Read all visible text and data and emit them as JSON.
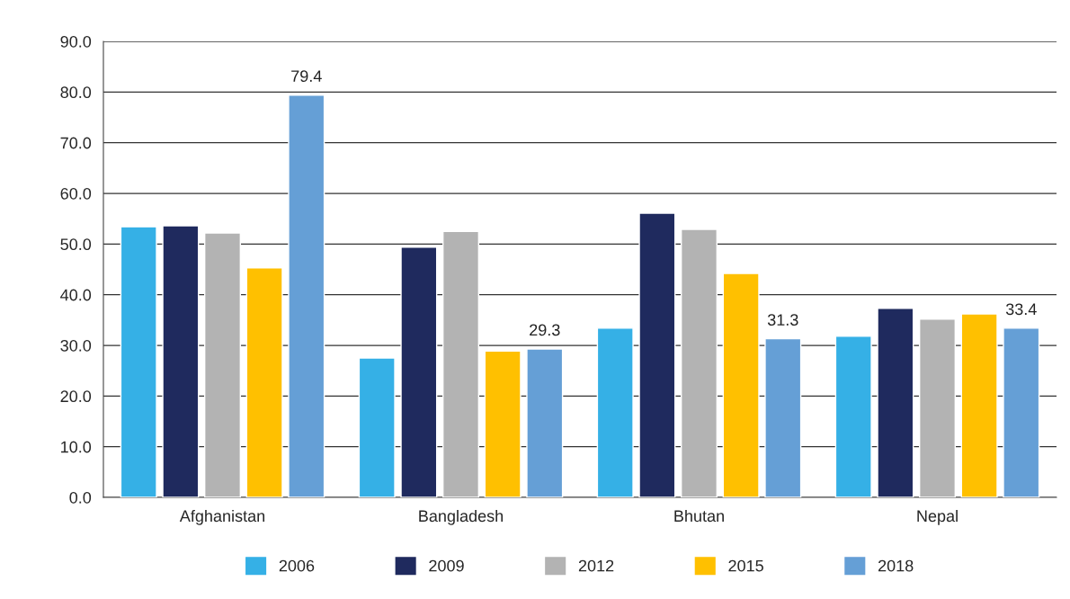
{
  "chart_data": {
    "type": "bar",
    "categories": [
      "Afghanistan",
      "Bangladesh",
      "Bhutan",
      "Nepal"
    ],
    "series": [
      {
        "name": "2006",
        "color": "#35b0e6",
        "values": [
          53.4,
          27.5,
          33.4,
          31.8
        ]
      },
      {
        "name": "2009",
        "color": "#1f2a5e",
        "values": [
          53.6,
          49.4,
          56.1,
          37.3
        ]
      },
      {
        "name": "2012",
        "color": "#b3b3b3",
        "values": [
          52.2,
          52.5,
          52.9,
          35.2
        ]
      },
      {
        "name": "2015",
        "color": "#ffc000",
        "values": [
          45.3,
          28.9,
          44.2,
          36.2
        ]
      },
      {
        "name": "2018",
        "color": "#659fd6",
        "values": [
          79.4,
          29.3,
          31.3,
          33.4
        ],
        "value_labels": [
          "79.4",
          "29.3",
          "31.3",
          "33.4"
        ]
      }
    ],
    "ylim": [
      0,
      90
    ],
    "yticks": [
      {
        "value": 0,
        "label": "0.0"
      },
      {
        "value": 10,
        "label": "10.0"
      },
      {
        "value": 20,
        "label": "20.0"
      },
      {
        "value": 30,
        "label": "30.0"
      },
      {
        "value": 40,
        "label": "40.0"
      },
      {
        "value": 50,
        "label": "50.0"
      },
      {
        "value": 60,
        "label": "60.0"
      },
      {
        "value": 70,
        "label": "70.0"
      },
      {
        "value": 80,
        "label": "80.0"
      },
      {
        "value": 90,
        "label": "90.0"
      }
    ],
    "grid": "y",
    "legend": "bottom"
  }
}
